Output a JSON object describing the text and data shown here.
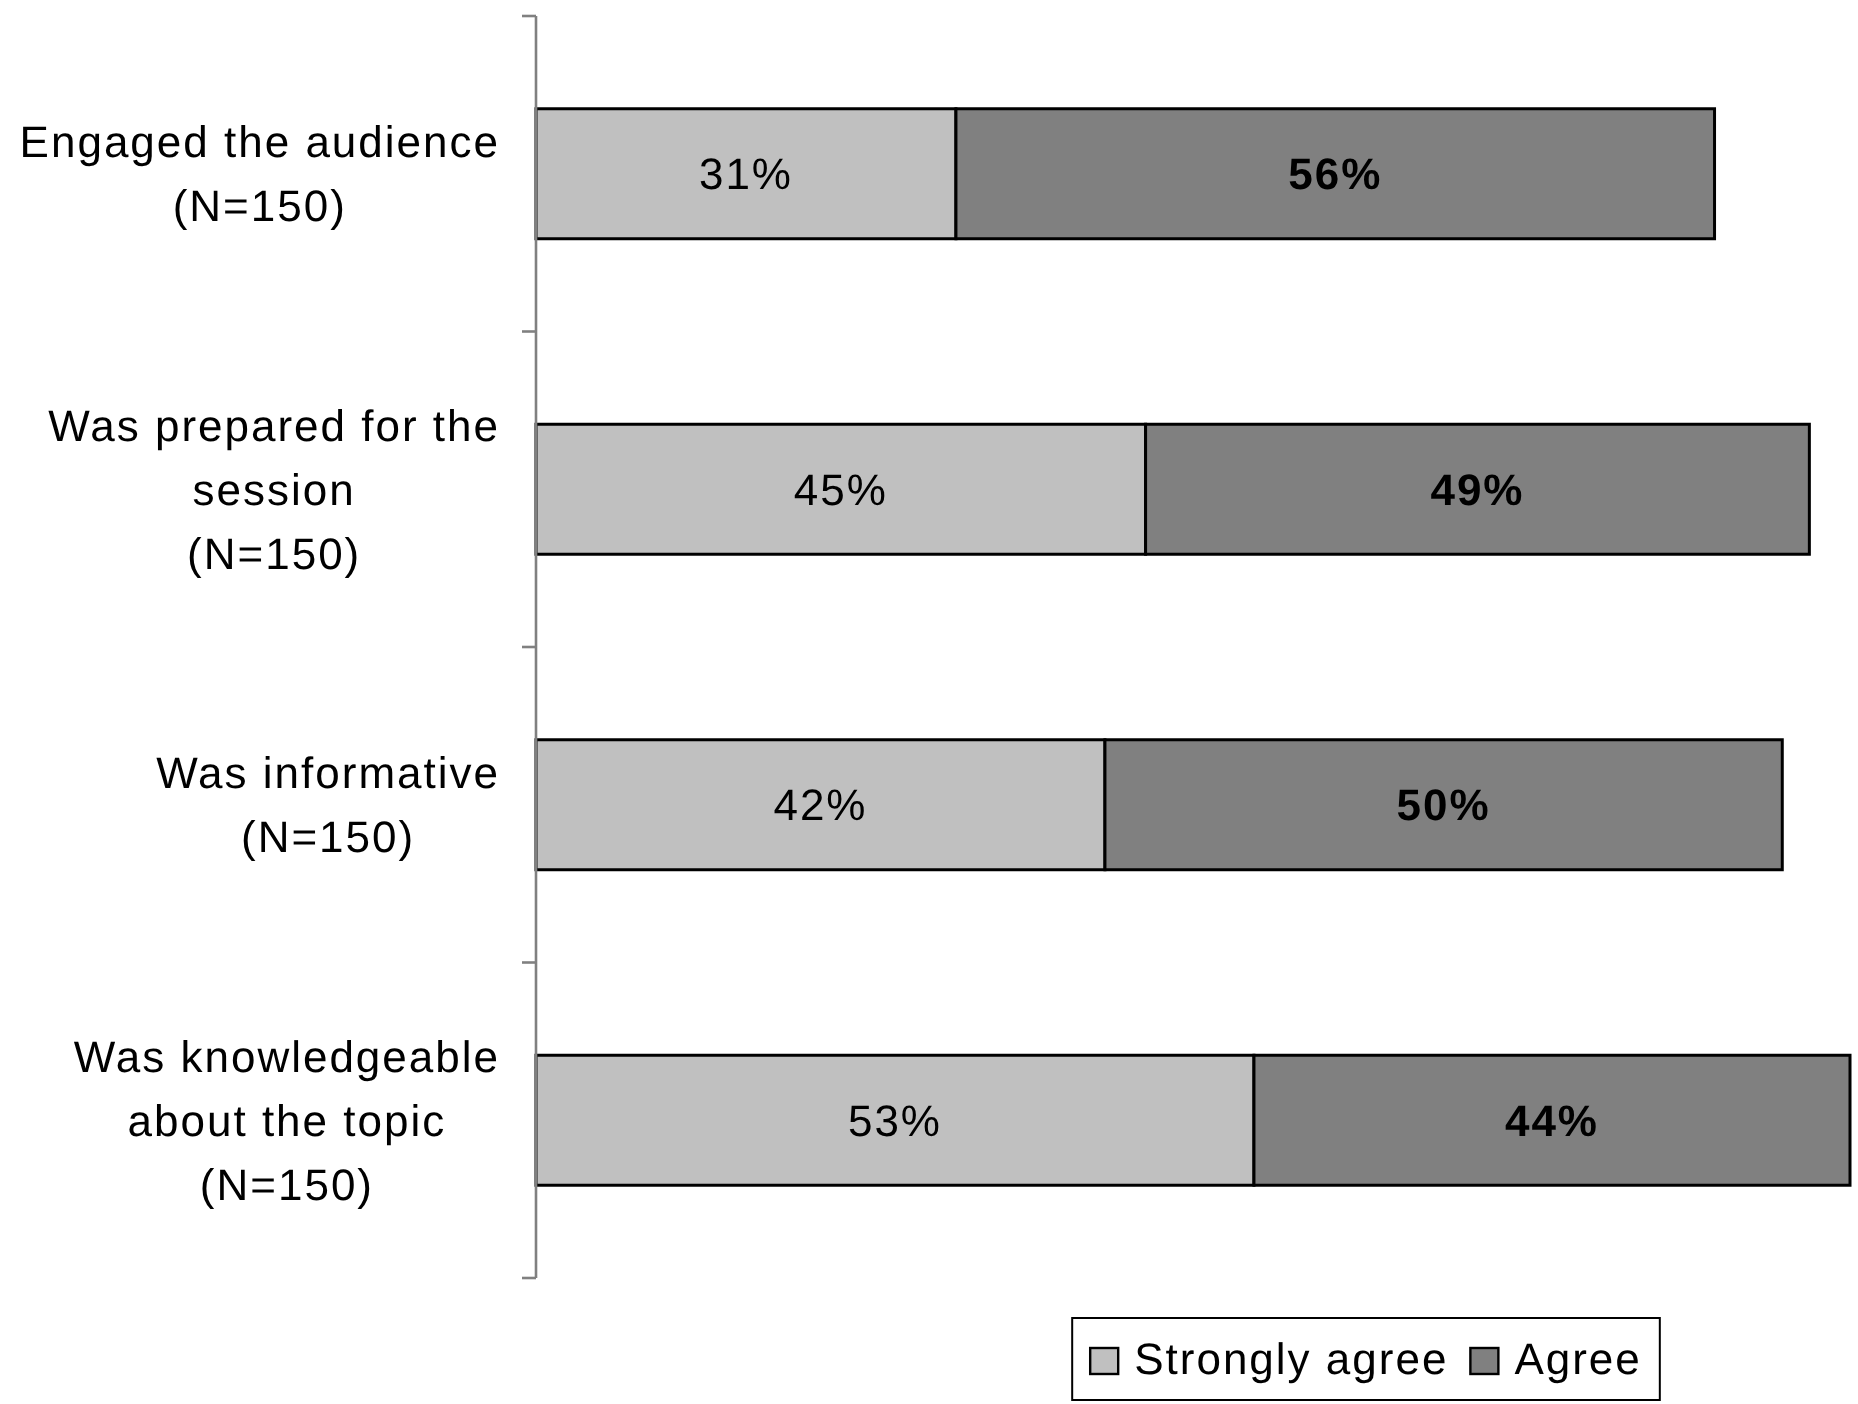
{
  "chart_data": {
    "type": "bar",
    "orientation": "horizontal",
    "stacked": true,
    "categories": [
      "Engaged the audience\n(N=150)",
      "Was prepared for the session\n(N=150)",
      "Was informative\n(N=150)",
      "Was knowledgeable about the topic\n(N=150)"
    ],
    "series": [
      {
        "name": "Strongly agree",
        "color": "#c0c0c0",
        "values": [
          31,
          45,
          42,
          53
        ],
        "value_labels": [
          "31%",
          "45%",
          "42%",
          "53%"
        ]
      },
      {
        "name": "Agree",
        "color": "#808080",
        "values": [
          56,
          49,
          50,
          44
        ],
        "value_labels": [
          "56%",
          "49%",
          "50%",
          "44%"
        ]
      }
    ],
    "legend": "bottom"
  }
}
